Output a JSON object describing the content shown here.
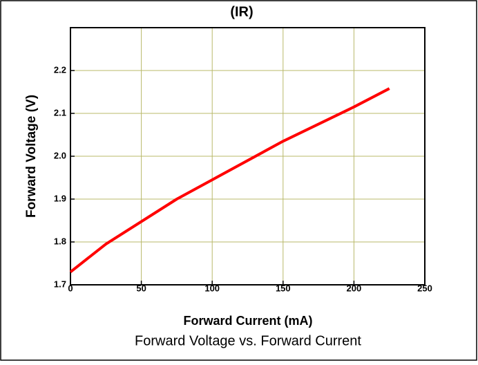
{
  "chart_data": {
    "type": "line",
    "title": "(IR)",
    "caption": "Forward Voltage vs. Forward Current",
    "x_label": "Forward Current (mA)",
    "y_label": "Forward Voltage (V)",
    "x": [
      0,
      25,
      75,
      100,
      150,
      200,
      225
    ],
    "series": [
      {
        "color": "#ff0000",
        "values": [
          1.73,
          1.795,
          1.9,
          1.945,
          2.035,
          2.115,
          2.158
        ]
      }
    ],
    "xlim": [
      0,
      250
    ],
    "xticks": [
      0,
      50,
      100,
      150,
      200,
      250
    ],
    "ylim": [
      1.7,
      2.3
    ],
    "yticks": [
      1.7,
      1.8,
      1.9,
      {
        "value": 2,
        "label": "2.0"
      },
      2.1,
      2.2
    ],
    "grid": true
  }
}
